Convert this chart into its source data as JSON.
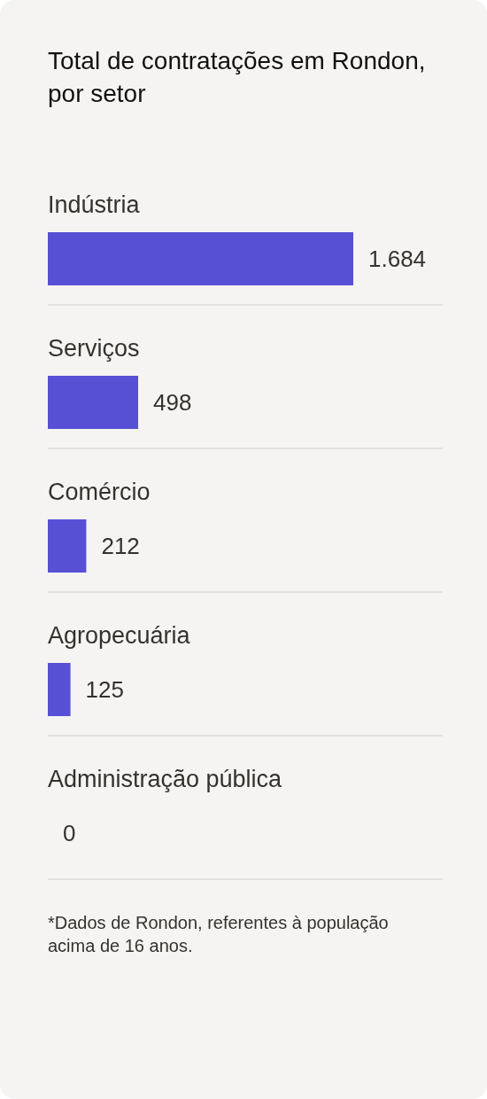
{
  "chart_data": {
    "type": "bar",
    "orientation": "horizontal",
    "title": "Total de contratações em Rondon, por setor",
    "categories": [
      "Indústria",
      "Serviços",
      "Comércio",
      "Agropecuária",
      "Administração pública"
    ],
    "values": [
      1684,
      498,
      212,
      125,
      0
    ],
    "color": "#5750d5",
    "value_labels": [
      "1.684",
      "498",
      "212",
      "125",
      "0"
    ],
    "grid": "y",
    "annotations": [
      "*Dados de Rondon, referentes à população acima de 16 anos."
    ]
  }
}
